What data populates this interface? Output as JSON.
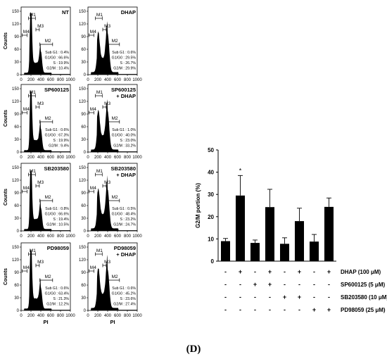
{
  "panel_label": "(D)",
  "histograms": {
    "y_label": "Counts",
    "x_label": "PI",
    "y_ticks": [
      "0",
      "30",
      "60",
      "90",
      "120",
      "150"
    ],
    "x_ticks": [
      "0",
      "200",
      "400",
      "600",
      "800",
      "1000"
    ],
    "gate_labels": [
      "M1",
      "M2",
      "M3",
      "M4"
    ],
    "panels": [
      {
        "title": [
          "NT"
        ],
        "stats": [
          "Sub G1 : 0.4%",
          "G1/G0 : 66.6%",
          "S : 19.9%",
          "G2/M : 10.4%"
        ],
        "profile": "g1"
      },
      {
        "title": [
          "DHAP"
        ],
        "stats": [
          "Sub G1 : 0.6%",
          "G1/G0 : 29.5%",
          "S : 26.7%",
          "G2/M : 29.9%"
        ],
        "profile": "arrest"
      },
      {
        "title": [
          "SP600125"
        ],
        "stats": [
          "Sub G1 : 0.6%",
          "G1/G0 : 67.3%",
          "S : 19.9%",
          "G2/M : 9.4%"
        ],
        "profile": "g1"
      },
      {
        "title": [
          "SP600125",
          "+ DHAP"
        ],
        "stats": [
          "Sub G1 : 1.0%",
          "G1/G0 : 40.0%",
          "S : 23.0%",
          "G2/M : 33.2%"
        ],
        "profile": "arrest"
      },
      {
        "title": [
          "SB203580"
        ],
        "stats": [
          "Sub G1 : 0.8%",
          "G1/G0 : 66.6%",
          "S : 19.4%",
          "G2/M : 10.5%"
        ],
        "profile": "g1"
      },
      {
        "title": [
          "SB203580",
          "+ DHAP"
        ],
        "stats": [
          "Sub G1 : 0.5%",
          "G1/G0 : 48.4%",
          "S : 23.2%",
          "G2/M : 24.7%"
        ],
        "profile": "arrest"
      },
      {
        "title": [
          "PD98059"
        ],
        "stats": [
          "Sub G1 : 0.6%",
          "G1/G0 : 63.4%",
          "S : 21.3%",
          "G2/M : 12.2%"
        ],
        "profile": "g1"
      },
      {
        "title": [
          "PD98059",
          "+ DHAP"
        ],
        "stats": [
          "Sub G1 : 0.6%",
          "G1/G0 : 45.2%",
          "S : 23.6%",
          "G2/M : 27.4%"
        ],
        "profile": "arrest"
      }
    ]
  },
  "chart_data": {
    "type": "bar",
    "ylabel": "G2/M portion (%)",
    "ylim": [
      0,
      50
    ],
    "yticks": [
      0,
      10,
      20,
      30,
      40,
      50
    ],
    "values": [
      9,
      29.5,
      8.2,
      24.3,
      7.8,
      18,
      8.8,
      24.4
    ],
    "errors": [
      1.2,
      9,
      1.3,
      8,
      2.7,
      5.8,
      3.2,
      4
    ],
    "significance": [
      "",
      "*",
      "",
      "",
      "",
      "",
      "",
      ""
    ],
    "bar_color": "#000000",
    "treatments": [
      {
        "label": "DHAP (100 μM)",
        "signs": [
          "-",
          "+",
          "-",
          "+",
          "-",
          "+",
          "-",
          "+"
        ]
      },
      {
        "label": "SP600125 (5 μM)",
        "signs": [
          "-",
          "-",
          "+",
          "+",
          "-",
          "-",
          "-",
          "-"
        ]
      },
      {
        "label": "SB203580 (10 μM)",
        "signs": [
          "-",
          "-",
          "-",
          "-",
          "+",
          "+",
          "-",
          "-"
        ]
      },
      {
        "label": "PD98059 (25 μM)",
        "signs": [
          "-",
          "-",
          "-",
          "-",
          "-",
          "-",
          "+",
          "+"
        ]
      }
    ]
  }
}
